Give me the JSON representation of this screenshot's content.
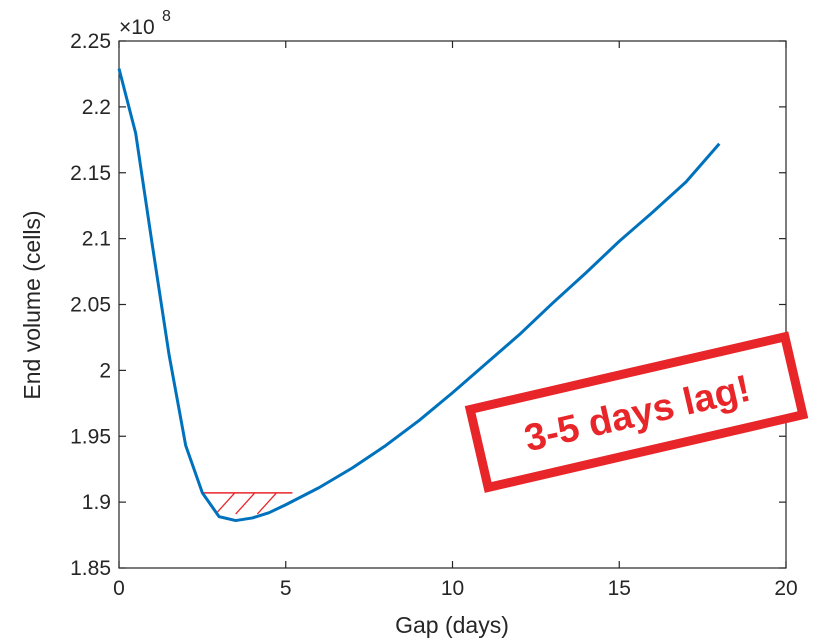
{
  "chart_data": {
    "type": "line",
    "title": "",
    "xlabel": "Gap (days)",
    "ylabel": "End volume (cells)",
    "xlim": [
      0,
      20
    ],
    "ylim": [
      1.85,
      2.25
    ],
    "y_exponent_label": "×10",
    "y_exponent_power": "8",
    "xticks": [
      "0",
      "5",
      "10",
      "15",
      "20"
    ],
    "yticks": [
      "1.85",
      "1.9",
      "1.95",
      "2",
      "2.05",
      "2.1",
      "2.15",
      "2.2",
      "2.25"
    ],
    "grid": false,
    "series": [
      {
        "color": "#0072BD",
        "x": [
          0,
          0.5,
          1,
          1.5,
          2,
          2.5,
          3,
          3.5,
          4,
          4.5,
          5,
          6,
          7,
          8,
          9,
          10,
          11,
          12,
          13,
          14,
          15,
          16,
          17,
          18
        ],
        "y": [
          2.229,
          2.18,
          2.095,
          2.012,
          1.943,
          1.907,
          1.889,
          1.886,
          1.888,
          1.892,
          1.898,
          1.911,
          1.926,
          1.943,
          1.962,
          1.983,
          2.005,
          2.027,
          2.051,
          2.074,
          2.098,
          2.12,
          2.143,
          2.172
        ]
      }
    ],
    "annotations": {
      "stamp_text": "3-5 days lag!",
      "stamp_color": "#E8262A",
      "highlight_x_range": [
        2.5,
        5.2
      ],
      "highlight_y": 1.907,
      "highlight_color": "#E8262A"
    }
  }
}
